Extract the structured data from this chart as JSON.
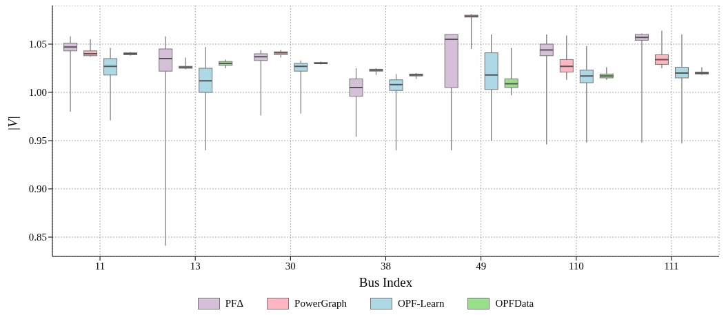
{
  "chart_data": {
    "type": "box",
    "xlabel": "Bus Index",
    "ylabel": "|V|",
    "categories": [
      "11",
      "13",
      "30",
      "38",
      "49",
      "110",
      "111"
    ],
    "ylim": [
      0.83,
      1.09
    ],
    "yticks": [
      0.85,
      {
        "value": 0.9,
        "label": "0.90"
      },
      0.95,
      {
        "value": 1,
        "label": "1.00"
      },
      1.05
    ],
    "grid": true,
    "legend": "bottom",
    "series": [
      {
        "name": "PFΔ",
        "color": "#d5bfd9",
        "boxes": [
          {
            "low": 0.98,
            "q1": 1.043,
            "median": 1.047,
            "q3": 1.051,
            "high": 1.058
          },
          {
            "low": 0.841,
            "q1": 1.022,
            "median": 1.035,
            "q3": 1.045,
            "high": 1.058
          },
          {
            "low": 0.976,
            "q1": 1.033,
            "median": 1.037,
            "q3": 1.04,
            "high": 1.044
          },
          {
            "low": 0.954,
            "q1": 0.996,
            "median": 1.005,
            "q3": 1.014,
            "high": 1.025
          },
          {
            "low": 0.94,
            "q1": 1.005,
            "median": 1.055,
            "q3": 1.06,
            "high": 1.06
          },
          {
            "low": 0.946,
            "q1": 1.038,
            "median": 1.044,
            "q3": 1.05,
            "high": 1.06
          },
          {
            "low": 0.948,
            "q1": 1.054,
            "median": 1.057,
            "q3": 1.06,
            "high": 1.061
          }
        ]
      },
      {
        "name": "PowerGraph",
        "color": "#ffb6c1",
        "boxes": [
          {
            "low": 1.037,
            "q1": 1.038,
            "median": 1.04,
            "q3": 1.043,
            "high": 1.055
          },
          {
            "low": 1.024,
            "q1": 1.025,
            "median": 1.026,
            "q3": 1.027,
            "high": 1.036
          },
          {
            "low": 1.036,
            "q1": 1.039,
            "median": 1.041,
            "q3": 1.042,
            "high": 1.044
          },
          {
            "low": 1.018,
            "q1": 1.022,
            "median": 1.023,
            "q3": 1.024,
            "high": 1.025
          },
          {
            "low": 1.045,
            "q1": 1.078,
            "median": 1.079,
            "q3": 1.08,
            "high": 1.081
          },
          {
            "low": 1.013,
            "q1": 1.021,
            "median": 1.027,
            "q3": 1.034,
            "high": 1.059
          },
          {
            "low": 1.025,
            "q1": 1.029,
            "median": 1.034,
            "q3": 1.039,
            "high": 1.064
          }
        ]
      },
      {
        "name": "OPF-Learn",
        "color": "#add8e6",
        "boxes": [
          {
            "low": 0.971,
            "q1": 1.018,
            "median": 1.027,
            "q3": 1.035,
            "high": 1.046
          },
          {
            "low": 0.94,
            "q1": 1.0,
            "median": 1.012,
            "q3": 1.025,
            "high": 1.047
          },
          {
            "low": 0.978,
            "q1": 1.022,
            "median": 1.027,
            "q3": 1.03,
            "high": 1.033
          },
          {
            "low": 0.94,
            "q1": 1.002,
            "median": 1.008,
            "q3": 1.013,
            "high": 1.019
          },
          {
            "low": 0.95,
            "q1": 1.003,
            "median": 1.018,
            "q3": 1.041,
            "high": 1.06
          },
          {
            "low": 0.948,
            "q1": 1.01,
            "median": 1.017,
            "q3": 1.023,
            "high": 1.048
          },
          {
            "low": 0.947,
            "q1": 1.015,
            "median": 1.02,
            "q3": 1.026,
            "high": 1.06
          }
        ]
      },
      {
        "name": "OPFData",
        "color": "#98df8a",
        "boxes": [
          {
            "low": 1.038,
            "q1": 1.039,
            "median": 1.04,
            "q3": 1.041,
            "high": 1.042
          },
          {
            "low": 1.025,
            "q1": 1.028,
            "median": 1.03,
            "q3": 1.032,
            "high": 1.034
          },
          {
            "low": 1.029,
            "q1": 1.03,
            "median": 1.03,
            "q3": 1.031,
            "high": 1.032
          },
          {
            "low": 1.014,
            "q1": 1.017,
            "median": 1.018,
            "q3": 1.019,
            "high": 1.02
          },
          {
            "low": 0.997,
            "q1": 1.005,
            "median": 1.009,
            "q3": 1.014,
            "high": 1.046
          },
          {
            "low": 1.013,
            "q1": 1.015,
            "median": 1.017,
            "q3": 1.019,
            "high": 1.026
          },
          {
            "low": 1.018,
            "q1": 1.019,
            "median": 1.02,
            "q3": 1.021,
            "high": 1.026
          }
        ]
      }
    ]
  }
}
